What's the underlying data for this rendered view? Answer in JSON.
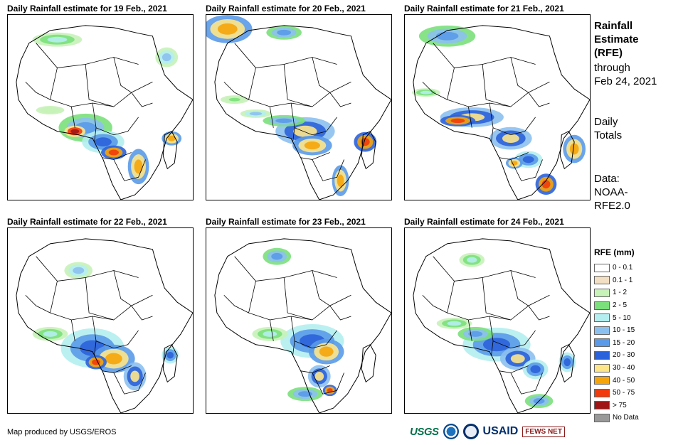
{
  "panels": [
    {
      "title": "Daily Rainfall estimate for 19 Feb., 2021"
    },
    {
      "title": "Daily Rainfall estimate for 20 Feb., 2021"
    },
    {
      "title": "Daily Rainfall estimate for 21 Feb., 2021"
    },
    {
      "title": "Daily Rainfall estimate for 22 Feb., 2021"
    },
    {
      "title": "Daily Rainfall estimate for 23 Feb., 2021"
    },
    {
      "title": "Daily Rainfall estimate for 24 Feb., 2021"
    }
  ],
  "sidebar": {
    "title_lines": [
      "Rainfall",
      "Estimate",
      "(RFE)"
    ],
    "through_lines": [
      "through",
      "Feb 24, 2021"
    ],
    "daily_lines": [
      "Daily",
      "Totals"
    ],
    "data_lines": [
      "Data:",
      "NOAA-",
      "RFE2.0"
    ]
  },
  "legend": {
    "title": "RFE (mm)",
    "items": [
      {
        "label": "0 - 0.1",
        "color": "#ffffff"
      },
      {
        "label": "0.1 - 1",
        "color": "#f2dfc4"
      },
      {
        "label": "1 - 2",
        "color": "#c7f2b8"
      },
      {
        "label": "2 - 5",
        "color": "#7be07b"
      },
      {
        "label": "5 - 10",
        "color": "#b4eef0"
      },
      {
        "label": "10 - 15",
        "color": "#8cc0ef"
      },
      {
        "label": "15 - 20",
        "color": "#5a9ae8"
      },
      {
        "label": "20 - 30",
        "color": "#2b62d9"
      },
      {
        "label": "30 - 40",
        "color": "#fde68a"
      },
      {
        "label": "40 - 50",
        "color": "#f5a50a"
      },
      {
        "label": "50 - 75",
        "color": "#f23b0c"
      },
      {
        "label": "> 75",
        "color": "#a01616"
      },
      {
        "label": "No Data",
        "color": "#999999"
      }
    ]
  },
  "footer": {
    "credit": "Map produced by USGS/EROS",
    "logos": {
      "usgs": "USGS",
      "usaid": "USAID",
      "fews": "FEWS NET"
    }
  }
}
